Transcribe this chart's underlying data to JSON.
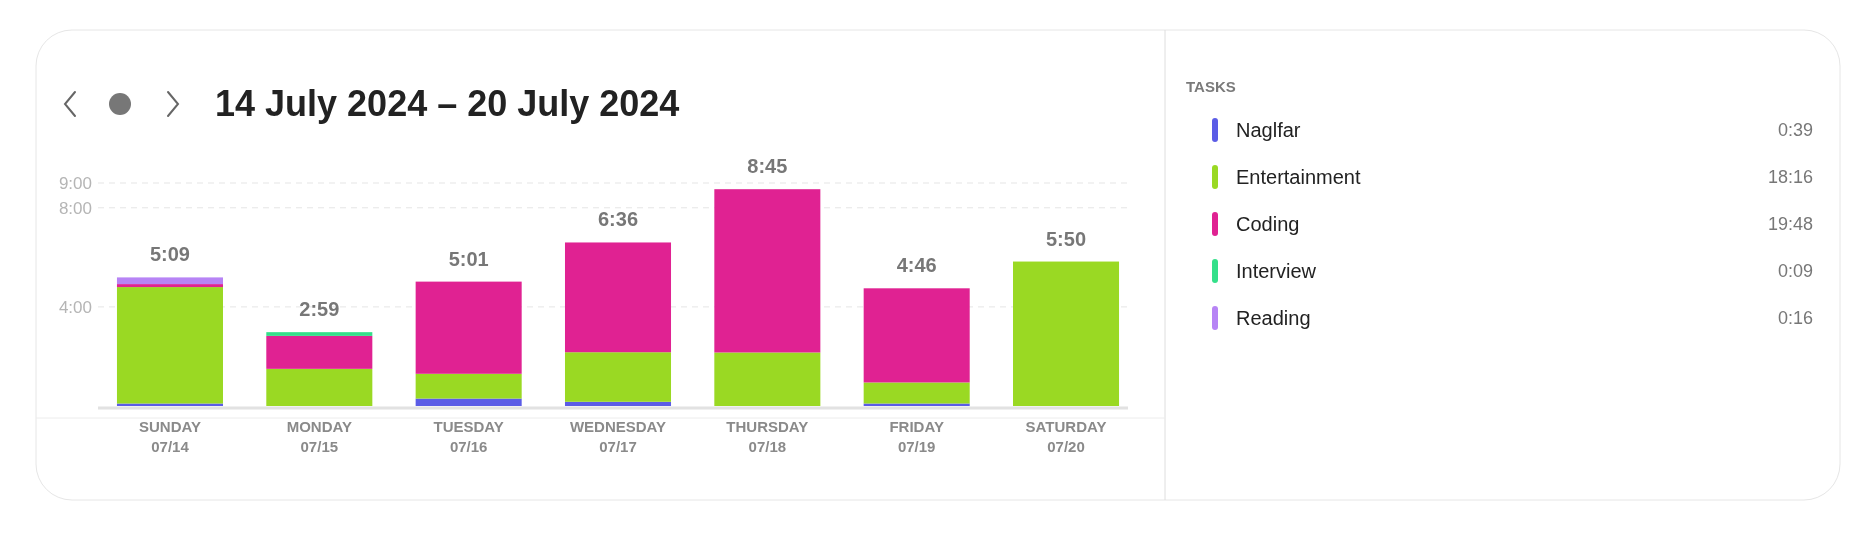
{
  "chart_data": {
    "type": "bar",
    "title": "14 July 2024  –  20 July 2024",
    "stacked": true,
    "categories": [
      "SUNDAY 07/14",
      "MONDAY 07/15",
      "TUESDAY 07/16",
      "WEDNESDAY 07/17",
      "THURSDAY 07/18",
      "FRIDAY 07/19",
      "SATURDAY 07/20"
    ],
    "series": [
      {
        "name": "Naglfar",
        "color": "#5b5ce6",
        "values": [
          0.1,
          0,
          0.3,
          0.17,
          0,
          0.1,
          0
        ]
      },
      {
        "name": "Entertainment",
        "color": "#9ad923",
        "values": [
          4.7,
          1.5,
          1.0,
          2.0,
          2.16,
          0.85,
          5.83
        ]
      },
      {
        "name": "Coding",
        "color": "#e02292",
        "values": [
          0.12,
          1.33,
          3.72,
          4.43,
          6.59,
          3.8,
          0
        ]
      },
      {
        "name": "Interview",
        "color": "#34e08a",
        "values": [
          0,
          0.15,
          0,
          0,
          0,
          0,
          0
        ]
      },
      {
        "name": "Reading",
        "color": "#b784f5",
        "values": [
          0.27,
          0,
          0,
          0,
          0,
          0,
          0
        ]
      }
    ],
    "totals": [
      "5:09",
      "2:59",
      "5:01",
      "6:36",
      "8:45",
      "4:46",
      "5:50"
    ],
    "ylim": [
      0,
      9
    ],
    "yticks": [
      {
        "value": 4,
        "label": "4:00"
      },
      {
        "value": 8,
        "label": "8:00"
      },
      {
        "value": 9,
        "label": "9:00"
      }
    ],
    "grid": "y",
    "legend": "right",
    "legend_title": "TASKS",
    "annotations": [
      "0:39",
      "18:16",
      "19:48",
      "0:09",
      "0:16"
    ]
  }
}
